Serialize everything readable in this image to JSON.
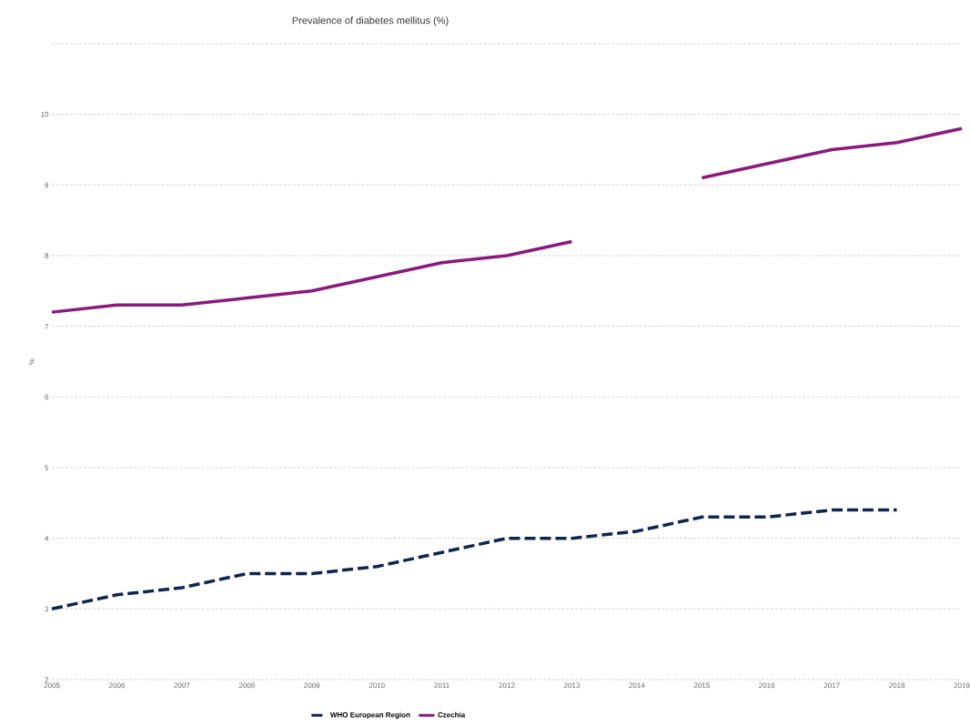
{
  "chart_data": {
    "type": "line",
    "title": "Prevalence of diabetes mellitus (%)",
    "ylabel": "%",
    "x": [
      2005,
      2006,
      2007,
      2008,
      2009,
      2010,
      2011,
      2012,
      2013,
      2014,
      2015,
      2016,
      2017,
      2018,
      2019
    ],
    "series": [
      {
        "name": "WHO European Region",
        "color": "#0d2651",
        "line_style": "dashed",
        "values": [
          3.0,
          3.2,
          3.3,
          3.5,
          3.5,
          3.6,
          3.8,
          4.0,
          4.0,
          4.1,
          4.3,
          4.3,
          4.4,
          4.4,
          null
        ]
      },
      {
        "name": "Czechia",
        "color": "#8b1a7e",
        "line_style": "solid",
        "values": [
          7.2,
          7.3,
          7.3,
          7.4,
          7.5,
          7.7,
          7.9,
          8.0,
          8.2,
          null,
          9.1,
          9.3,
          9.5,
          9.6,
          9.8
        ]
      }
    ],
    "xlim": [
      2005,
      2019
    ],
    "xticks": [
      2005,
      2006,
      2007,
      2008,
      2009,
      2010,
      2011,
      2012,
      2013,
      2014,
      2015,
      2016,
      2017,
      2018,
      2019
    ],
    "ylim": [
      2,
      11
    ],
    "yticks": [
      2,
      3,
      4,
      5,
      6,
      7,
      8,
      9,
      10,
      {
        "value": 11,
        "label": null
      }
    ],
    "grid": "y",
    "legend": "bottom",
    "marker": "none"
  }
}
